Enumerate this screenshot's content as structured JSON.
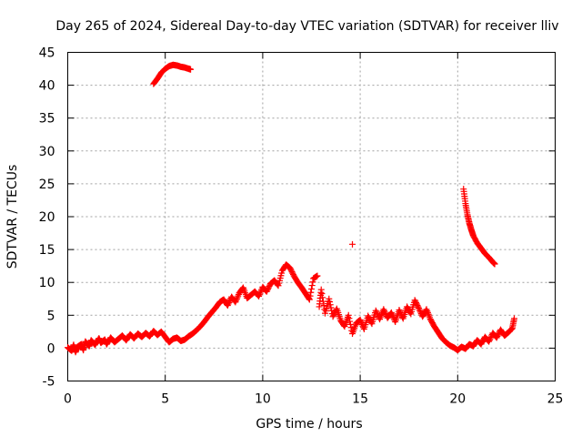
{
  "chart_data": {
    "type": "scatter",
    "title": "Day 265 of 2024, Sidereal Day-to-day VTEC variation (SDTVAR) for receiver lliv",
    "xlabel": "GPS time / hours",
    "ylabel": "SDTVAR / TECUs",
    "xlim": [
      0,
      25
    ],
    "ylim": [
      -5,
      45
    ],
    "xticks": [
      0,
      5,
      10,
      15,
      20,
      25
    ],
    "yticks": [
      -5,
      0,
      5,
      10,
      15,
      20,
      25,
      30,
      35,
      40,
      45
    ],
    "grid": true,
    "marker": "+",
    "color": "#ff0000",
    "series": [
      {
        "name": "SDTVAR",
        "points": [
          [
            0.0,
            0.1
          ],
          [
            0.2,
            -0.4
          ],
          [
            0.3,
            0.5
          ],
          [
            0.4,
            -0.6
          ],
          [
            0.5,
            0.2
          ],
          [
            0.7,
            0.6
          ],
          [
            0.8,
            -0.3
          ],
          [
            0.9,
            1.0
          ],
          [
            1.1,
            0.3
          ],
          [
            1.2,
            1.2
          ],
          [
            1.4,
            0.5
          ],
          [
            1.6,
            1.5
          ],
          [
            1.7,
            0.8
          ],
          [
            1.9,
            1.3
          ],
          [
            2.0,
            0.6
          ],
          [
            2.2,
            1.6
          ],
          [
            2.4,
            0.9
          ],
          [
            2.6,
            1.4
          ],
          [
            2.8,
            1.9
          ],
          [
            3.0,
            1.2
          ],
          [
            3.2,
            2.1
          ],
          [
            3.4,
            1.5
          ],
          [
            3.6,
            2.2
          ],
          [
            3.8,
            1.7
          ],
          [
            4.0,
            2.3
          ],
          [
            4.2,
            1.8
          ],
          [
            4.4,
            2.6
          ],
          [
            4.6,
            2.0
          ],
          [
            4.8,
            2.5
          ],
          [
            5.0,
            1.7
          ],
          [
            5.2,
            0.9
          ],
          [
            5.4,
            1.4
          ],
          [
            5.6,
            1.6
          ],
          [
            5.8,
            1.1
          ],
          [
            6.0,
            1.3
          ],
          [
            6.2,
            1.8
          ],
          [
            6.4,
            2.2
          ],
          [
            6.6,
            2.7
          ],
          [
            6.8,
            3.3
          ],
          [
            7.0,
            4.0
          ],
          [
            7.2,
            4.8
          ],
          [
            7.4,
            5.5
          ],
          [
            7.6,
            6.2
          ],
          [
            7.8,
            7.0
          ],
          [
            8.0,
            7.4
          ],
          [
            8.2,
            6.5
          ],
          [
            8.4,
            7.8
          ],
          [
            8.6,
            7.0
          ],
          [
            8.8,
            8.4
          ],
          [
            9.0,
            9.2
          ],
          [
            9.2,
            7.6
          ],
          [
            9.4,
            8.1
          ],
          [
            9.6,
            8.6
          ],
          [
            9.8,
            7.9
          ],
          [
            10.0,
            9.3
          ],
          [
            10.2,
            8.6
          ],
          [
            10.4,
            9.8
          ],
          [
            10.6,
            10.3
          ],
          [
            10.8,
            9.5
          ],
          [
            11.0,
            11.8
          ],
          [
            11.2,
            12.7
          ],
          [
            11.4,
            12.2
          ],
          [
            11.6,
            11.0
          ],
          [
            11.8,
            10.0
          ],
          [
            12.0,
            9.2
          ],
          [
            12.2,
            8.3
          ],
          [
            12.4,
            7.4
          ],
          [
            12.6,
            10.6
          ],
          [
            12.8,
            11.0
          ],
          [
            12.9,
            6.3
          ],
          [
            13.0,
            8.9
          ],
          [
            13.2,
            5.3
          ],
          [
            13.4,
            7.5
          ],
          [
            13.6,
            4.8
          ],
          [
            13.8,
            6.0
          ],
          [
            14.0,
            4.2
          ],
          [
            14.2,
            3.3
          ],
          [
            14.4,
            5.0
          ],
          [
            14.6,
            2.2
          ],
          [
            14.8,
            3.8
          ],
          [
            15.0,
            4.3
          ],
          [
            15.2,
            2.9
          ],
          [
            15.4,
            4.9
          ],
          [
            15.6,
            3.7
          ],
          [
            15.8,
            5.7
          ],
          [
            16.0,
            4.4
          ],
          [
            16.2,
            5.9
          ],
          [
            16.4,
            4.6
          ],
          [
            16.6,
            5.4
          ],
          [
            16.8,
            4.0
          ],
          [
            17.0,
            5.8
          ],
          [
            17.2,
            4.5
          ],
          [
            17.4,
            6.3
          ],
          [
            17.6,
            5.2
          ],
          [
            17.8,
            7.3
          ],
          [
            18.0,
            6.1
          ],
          [
            18.2,
            4.8
          ],
          [
            18.4,
            5.9
          ],
          [
            18.6,
            4.4
          ],
          [
            18.8,
            3.3
          ],
          [
            19.0,
            2.4
          ],
          [
            19.2,
            1.5
          ],
          [
            19.4,
            0.9
          ],
          [
            19.6,
            0.4
          ],
          [
            19.8,
            0.1
          ],
          [
            20.0,
            -0.3
          ],
          [
            20.2,
            0.2
          ],
          [
            20.4,
            -0.1
          ],
          [
            20.6,
            0.6
          ],
          [
            20.8,
            0.3
          ],
          [
            21.0,
            1.2
          ],
          [
            21.2,
            0.6
          ],
          [
            21.4,
            1.7
          ],
          [
            21.6,
            1.0
          ],
          [
            21.8,
            2.3
          ],
          [
            22.0,
            1.6
          ],
          [
            22.2,
            2.8
          ],
          [
            22.4,
            1.9
          ],
          [
            22.6,
            2.4
          ],
          [
            22.8,
            3.0
          ],
          [
            22.9,
            4.5
          ],
          [
            4.4,
            40.2
          ],
          [
            4.6,
            41.0
          ],
          [
            4.8,
            41.9
          ],
          [
            5.0,
            42.5
          ],
          [
            5.2,
            42.9
          ],
          [
            5.4,
            43.1
          ],
          [
            5.6,
            43.0
          ],
          [
            5.8,
            42.8
          ],
          [
            6.0,
            42.7
          ],
          [
            6.2,
            42.5
          ],
          [
            6.3,
            42.4
          ],
          [
            14.6,
            15.8
          ],
          [
            20.3,
            24.2
          ],
          [
            20.4,
            22.0
          ],
          [
            20.5,
            20.3
          ],
          [
            20.6,
            19.0
          ],
          [
            20.7,
            18.0
          ],
          [
            20.8,
            17.1
          ],
          [
            21.0,
            16.0
          ],
          [
            21.2,
            15.2
          ],
          [
            21.4,
            14.4
          ],
          [
            21.6,
            13.8
          ],
          [
            21.8,
            13.1
          ],
          [
            21.9,
            12.8
          ]
        ]
      }
    ]
  }
}
